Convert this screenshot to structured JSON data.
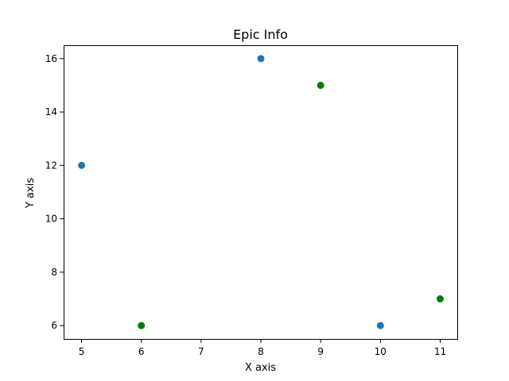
{
  "chart_data": {
    "type": "scatter",
    "title": "Epic Info",
    "xlabel": "X axis",
    "ylabel": "Y axis",
    "xlim": [
      4.7,
      11.3
    ],
    "ylim": [
      5.5,
      16.5
    ],
    "xticks": [
      5,
      6,
      7,
      8,
      9,
      10,
      11
    ],
    "yticks": [
      6,
      8,
      10,
      12,
      14,
      16
    ],
    "grid": false,
    "series": [
      {
        "color": "#1f77b4",
        "x": [
          5,
          8,
          10
        ],
        "y": [
          12,
          16,
          6
        ]
      },
      {
        "color": "#008000",
        "x": [
          6,
          9,
          11
        ],
        "y": [
          6,
          15,
          7
        ]
      }
    ]
  }
}
